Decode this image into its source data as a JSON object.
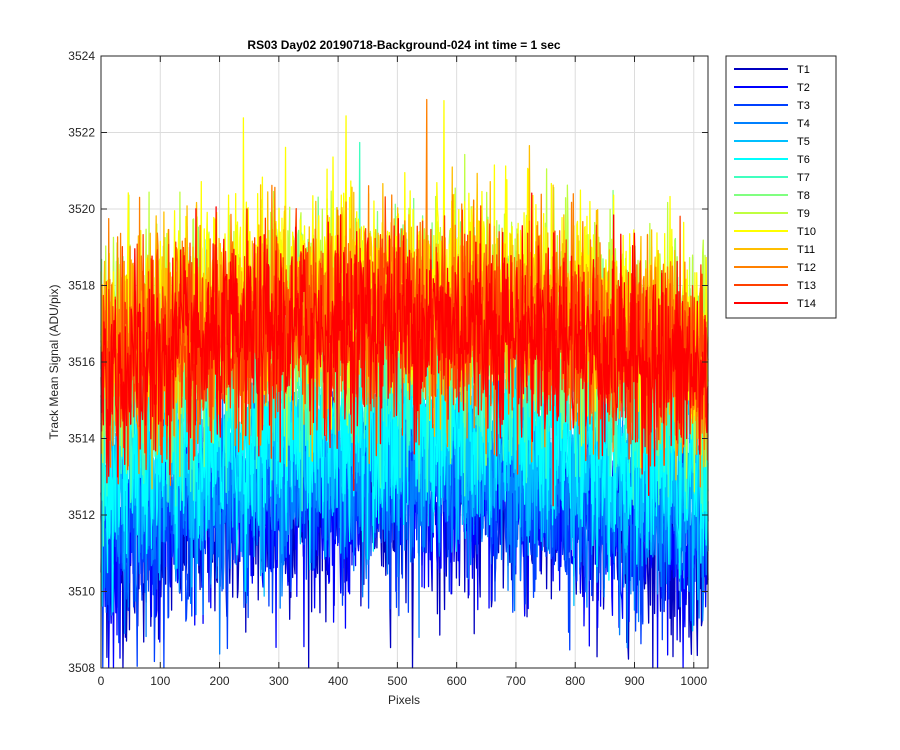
{
  "chart_data": {
    "type": "line",
    "title": "RS03 Day02 20190718-Background-024 int time = 1 sec",
    "xlabel": "Pixels",
    "ylabel": "Track Mean Signal (ADU/pix)",
    "xlim": [
      0,
      1024
    ],
    "ylim": [
      3508,
      3524
    ],
    "xticks": [
      0,
      100,
      200,
      300,
      400,
      500,
      600,
      700,
      800,
      900,
      1000
    ],
    "yticks": [
      3508,
      3510,
      3512,
      3514,
      3516,
      3518,
      3520,
      3522,
      3524
    ],
    "grid": true,
    "legend_position": "outside-top-right",
    "n_points": 1024,
    "noise_amplitude": 1.3,
    "series": [
      {
        "name": "T1",
        "color": "#0000BF",
        "edge_level": 3510.9,
        "center_level": 3512.3
      },
      {
        "name": "T2",
        "color": "#0000FF",
        "edge_level": 3511.1,
        "center_level": 3512.5
      },
      {
        "name": "T3",
        "color": "#0040FF",
        "edge_level": 3511.4,
        "center_level": 3512.8
      },
      {
        "name": "T4",
        "color": "#0080FF",
        "edge_level": 3511.8,
        "center_level": 3513.2
      },
      {
        "name": "T5",
        "color": "#00BFFF",
        "edge_level": 3512.8,
        "center_level": 3514.0
      },
      {
        "name": "T6",
        "color": "#00FFFF",
        "edge_level": 3513.2,
        "center_level": 3514.4
      },
      {
        "name": "T7",
        "color": "#40FFBF",
        "edge_level": 3514.8,
        "center_level": 3516.2
      },
      {
        "name": "T8",
        "color": "#80FF80",
        "edge_level": 3515.8,
        "center_level": 3517.2
      },
      {
        "name": "T9",
        "color": "#BFFF40",
        "edge_level": 3516.4,
        "center_level": 3517.8
      },
      {
        "name": "T10",
        "color": "#FFFF00",
        "edge_level": 3516.6,
        "center_level": 3518.2
      },
      {
        "name": "T11",
        "color": "#FFBF00",
        "edge_level": 3516.2,
        "center_level": 3517.6
      },
      {
        "name": "T12",
        "color": "#FF8000",
        "edge_level": 3515.8,
        "center_level": 3517.3
      },
      {
        "name": "T13",
        "color": "#FF4000",
        "edge_level": 3515.6,
        "center_level": 3517.1
      },
      {
        "name": "T14",
        "color": "#FF0000",
        "edge_level": 3515.5,
        "center_level": 3517.0
      }
    ]
  }
}
